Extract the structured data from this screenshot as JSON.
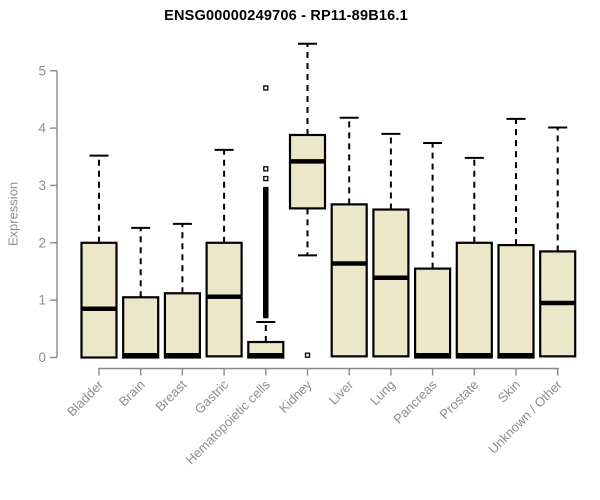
{
  "chart_data": {
    "type": "boxplot",
    "title": "ENSG00000249706 - RP11-89B16.1",
    "ylabel": "Expression",
    "xlabel": "",
    "ylim": [
      0,
      5
    ],
    "yticks": [
      0,
      1,
      2,
      3,
      4,
      5
    ],
    "grid": false,
    "legend": "none",
    "categories": [
      "Bladder",
      "Brain",
      "Breast",
      "Gastric",
      "Hematopoietic cells",
      "Kidney",
      "Liver",
      "Lung",
      "Pancreas",
      "Prostate",
      "Skin",
      "Unknown / Other"
    ],
    "boxes": [
      {
        "category": "Bladder",
        "whisker_low": 0,
        "q1": 0,
        "median": 0.85,
        "q3": 2.0,
        "whisker_high": 3.52,
        "outliers": []
      },
      {
        "category": "Brain",
        "whisker_low": 0,
        "q1": 0,
        "median": 0.04,
        "q3": 1.05,
        "whisker_high": 2.26,
        "outliers": []
      },
      {
        "category": "Breast",
        "whisker_low": 0,
        "q1": 0,
        "median": 0.04,
        "q3": 1.12,
        "whisker_high": 2.33,
        "outliers": []
      },
      {
        "category": "Gastric",
        "whisker_low": 0,
        "q1": 0.02,
        "median": 1.06,
        "q3": 2.0,
        "whisker_high": 3.62,
        "outliers": []
      },
      {
        "category": "Hematopoietic cells",
        "whisker_low": 0,
        "q1": 0,
        "median": 0.04,
        "q3": 0.27,
        "whisker_high": 0.62,
        "outliers": [
          3.12,
          3.29,
          4.7
        ],
        "outlier_band": {
          "min": 0.73,
          "max": 2.94
        }
      },
      {
        "category": "Kidney",
        "whisker_low": 1.78,
        "q1": 2.6,
        "median": 3.42,
        "q3": 3.88,
        "whisker_high": 5.47,
        "outliers": [
          0.04
        ]
      },
      {
        "category": "Liver",
        "whisker_low": 0,
        "q1": 0.02,
        "median": 1.64,
        "q3": 2.67,
        "whisker_high": 4.18,
        "outliers": []
      },
      {
        "category": "Lung",
        "whisker_low": 0,
        "q1": 0.02,
        "median": 1.39,
        "q3": 2.58,
        "whisker_high": 3.9,
        "outliers": []
      },
      {
        "category": "Pancreas",
        "whisker_low": 0,
        "q1": 0,
        "median": 0.04,
        "q3": 1.55,
        "whisker_high": 3.74,
        "outliers": []
      },
      {
        "category": "Prostate",
        "whisker_low": 0,
        "q1": 0,
        "median": 0.04,
        "q3": 2.0,
        "whisker_high": 3.48,
        "outliers": []
      },
      {
        "category": "Skin",
        "whisker_low": 0,
        "q1": 0,
        "median": 0.04,
        "q3": 1.96,
        "whisker_high": 4.16,
        "outliers": []
      },
      {
        "category": "Unknown / Other",
        "whisker_low": 0,
        "q1": 0.02,
        "median": 0.95,
        "q3": 1.85,
        "whisker_high": 4.01,
        "outliers": []
      }
    ],
    "colors": {
      "box_fill": "#EDE7CA",
      "box_border": "#000000",
      "median": "#000000",
      "whisker": "#000000",
      "axis": "#898989",
      "tick_label": "#8d8d8d",
      "title": "#000000",
      "background": "#FFFFFF"
    }
  }
}
